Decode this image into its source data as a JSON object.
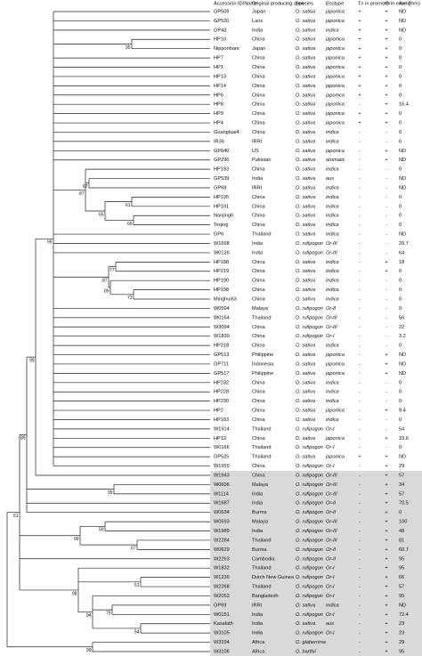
{
  "header": [
    "Accession ID/Name",
    "Original producing area",
    "Species",
    "Ecotype",
    "Tn in promoter",
    "G in exon 2",
    "Awn(mm)"
  ],
  "rows": [
    {
      "id": "GP509",
      "area": "Japan",
      "species": "O. sativa",
      "ecotype": "japonica",
      "tn": "+",
      "g": "+",
      "awn": "ND"
    },
    {
      "id": "GP520",
      "area": "Laos",
      "species": "O. sativa",
      "ecotype": "japonica",
      "tn": "+",
      "g": "+",
      "awn": "ND"
    },
    {
      "id": "GP43",
      "area": "India",
      "species": "O. sativa",
      "ecotype": "indica",
      "tn": "+",
      "g": "+",
      "awn": "ND"
    },
    {
      "id": "HP10",
      "area": "China",
      "species": "O. sativa",
      "ecotype": "japonica",
      "tn": "+",
      "g": "+",
      "awn": 0
    },
    {
      "id": "Nipponbare",
      "area": "Japan",
      "species": "O. sativa",
      "ecotype": "japonica",
      "tn": "+",
      "g": "+",
      "awn": 0
    },
    {
      "id": "HP7",
      "area": "China",
      "species": "O. sativa",
      "ecotype": "japonica",
      "tn": "+",
      "g": "+",
      "awn": 0
    },
    {
      "id": "HP1",
      "area": "China",
      "species": "O. sativa",
      "ecotype": "japonica",
      "tn": "+",
      "g": "+",
      "awn": 0
    },
    {
      "id": "HP13",
      "area": "China",
      "species": "O. sativa",
      "ecotype": "japonica",
      "tn": "+",
      "g": "+",
      "awn": 0
    },
    {
      "id": "HP14",
      "area": "China",
      "species": "O. sativa",
      "ecotype": "japonica",
      "tn": "+",
      "g": "+",
      "awn": 0
    },
    {
      "id": "HP6",
      "area": "China",
      "species": "O. sativa",
      "ecotype": "japonica",
      "tn": "+",
      "g": "+",
      "awn": 0
    },
    {
      "id": "HP8",
      "area": "China",
      "species": "O. sativa",
      "ecotype": "japonica",
      "tn": "-",
      "g": "+",
      "awn": 16.4
    },
    {
      "id": "HP9",
      "area": "China",
      "species": "O. sativa",
      "ecotype": "japonica",
      "tn": "+",
      "g": "+",
      "awn": 0
    },
    {
      "id": "HP4",
      "area": "China",
      "species": "O. sativa",
      "ecotype": "japonica",
      "tn": "+",
      "g": "+",
      "awn": 0
    },
    {
      "id": "Guangluai4",
      "area": "China",
      "species": "O. sativa",
      "ecotype": "indica",
      "tn": "-",
      "g": "-",
      "awn": 0
    },
    {
      "id": "IR36",
      "area": "IRRI",
      "species": "O. sativa",
      "ecotype": "indica",
      "tn": "-",
      "g": "-",
      "awn": 0
    },
    {
      "id": "GP640",
      "area": "US",
      "species": "O. sativa",
      "ecotype": "japonica",
      "tn": "-",
      "g": "+",
      "awn": "ND"
    },
    {
      "id": "GP296",
      "area": "Pakistan",
      "species": "O. sativa",
      "ecotype": "aromatic",
      "tn": "-",
      "g": "+",
      "awn": "ND"
    },
    {
      "id": "HP193",
      "area": "China",
      "species": "O. sativa",
      "ecotype": "indica",
      "tn": "-",
      "g": "-",
      "awn": 0
    },
    {
      "id": "GP539",
      "area": "India",
      "species": "O. sativa",
      "ecotype": "aus",
      "tn": "-",
      "g": "-",
      "awn": "ND"
    },
    {
      "id": "GP68",
      "area": "IRRI",
      "species": "O. sativa",
      "ecotype": "indica",
      "tn": "-",
      "g": "-",
      "awn": "ND"
    },
    {
      "id": "HP195",
      "area": "China",
      "species": "O. sativa",
      "ecotype": "indica",
      "tn": "-",
      "g": "-",
      "awn": 0
    },
    {
      "id": "HP191",
      "area": "China",
      "species": "O. sativa",
      "ecotype": "indica",
      "tn": "-",
      "g": "-",
      "awn": 0
    },
    {
      "id": "Nanjing6",
      "area": "China",
      "species": "O. sativa",
      "ecotype": "indica",
      "tn": "-",
      "g": "-",
      "awn": 0
    },
    {
      "id": "Teqing",
      "area": "China",
      "species": "O. sativa",
      "ecotype": "indica",
      "tn": "-",
      "g": "-",
      "awn": 0
    },
    {
      "id": "GP6",
      "area": "Thailand",
      "species": "O. sativa",
      "ecotype": "indica",
      "tn": "-",
      "g": "-",
      "awn": "ND"
    },
    {
      "id": "W1668",
      "area": "India",
      "species": "O. rufipogon",
      "ecotype": "Or-III",
      "tn": "-",
      "g": "-",
      "awn": 20.7
    },
    {
      "id": "W0126",
      "area": "India",
      "species": "O. rufipogon",
      "ecotype": "Or-III",
      "tn": "-",
      "g": "-",
      "awn": 64
    },
    {
      "id": "HP188",
      "area": "China",
      "species": "O. sativa",
      "ecotype": "indica",
      "tn": "-",
      "g": "+",
      "awn": 18
    },
    {
      "id": "HP219",
      "area": "China",
      "species": "O. sativa",
      "ecotype": "indica",
      "tn": "-",
      "g": "+",
      "awn": 0
    },
    {
      "id": "HP190",
      "area": "China",
      "species": "O. sativa",
      "ecotype": "indica",
      "tn": "-",
      "g": "-",
      "awn": 0
    },
    {
      "id": "HP198",
      "area": "China",
      "species": "O. sativa",
      "ecotype": "indica",
      "tn": "-",
      "g": "-",
      "awn": 0
    },
    {
      "id": "Minghui63",
      "area": "China",
      "species": "O. sativa",
      "ecotype": "indica",
      "tn": "-",
      "g": "-",
      "awn": 0
    },
    {
      "id": "W0594",
      "area": "Malaya",
      "species": "O. rufipogon",
      "ecotype": "Or-II",
      "tn": "-",
      "g": "-",
      "awn": 0
    },
    {
      "id": "W0164",
      "area": "Thailand",
      "species": "O. rufipogon",
      "ecotype": "Or-III",
      "tn": "-",
      "g": "-",
      "awn": 56
    },
    {
      "id": "W3094",
      "area": "China",
      "species": "O. rufipogon",
      "ecotype": "Or-III",
      "tn": "-",
      "g": "-",
      "awn": 22
    },
    {
      "id": "W1839",
      "area": "China",
      "species": "O. rufipogon",
      "ecotype": "Or-I",
      "tn": "-",
      "g": "-",
      "awn": 3.2
    },
    {
      "id": "HP218",
      "area": "China",
      "species": "O. sativa",
      "ecotype": "indica",
      "tn": "-",
      "g": "-",
      "awn": 0
    },
    {
      "id": "GP513",
      "area": "Philippine",
      "species": "O. sativa",
      "ecotype": "japonica",
      "tn": "-",
      "g": "+",
      "awn": "ND"
    },
    {
      "id": "GP711",
      "area": "Indonesia",
      "species": "O. sativa",
      "ecotype": "japonica",
      "tn": "-",
      "g": "+",
      "awn": "ND"
    },
    {
      "id": "GP517",
      "area": "Philippine",
      "species": "O. sativa",
      "ecotype": "japonica",
      "tn": "-",
      "g": "+",
      "awn": "ND"
    },
    {
      "id": "HP232",
      "area": "China",
      "species": "O. sativa",
      "ecotype": "indica",
      "tn": "-",
      "g": "-",
      "awn": 0
    },
    {
      "id": "HP228",
      "area": "China",
      "species": "O. sativa",
      "ecotype": "indica",
      "tn": "-",
      "g": "-",
      "awn": 0
    },
    {
      "id": "HP230",
      "area": "China",
      "species": "O. sativa",
      "ecotype": "indica",
      "tn": "-",
      "g": "-",
      "awn": 0
    },
    {
      "id": "HP2",
      "area": "China",
      "species": "O. sativa",
      "ecotype": "japonica",
      "tn": "-",
      "g": "+",
      "awn": 9.4
    },
    {
      "id": "HP183",
      "area": "China",
      "species": "O. sativa",
      "ecotype": "indica",
      "tn": "-",
      "g": "-",
      "awn": 0
    },
    {
      "id": "W1914",
      "area": "Thailand",
      "species": "O. rufipogon",
      "ecotype": "Or-I",
      "tn": "-",
      "g": "-",
      "awn": 54
    },
    {
      "id": "HP12",
      "area": "China",
      "species": "O. sativa",
      "ecotype": "japonica",
      "tn": "-",
      "g": "+",
      "awn": 33.6
    },
    {
      "id": "W0166",
      "area": "Thailand",
      "species": "O. rufipogon",
      "ecotype": "Or-I",
      "tn": "-",
      "g": "-",
      "awn": 0
    },
    {
      "id": "GP525",
      "area": "Thailand",
      "species": "O. sativa",
      "ecotype": "japonica",
      "tn": "+",
      "g": "+",
      "awn": "ND"
    },
    {
      "id": "W1959",
      "area": "China",
      "species": "O. rufipogon",
      "ecotype": "Or-I",
      "tn": "-",
      "g": "+",
      "awn": 29
    },
    {
      "id": "W1943",
      "area": "China",
      "species": "O. rufipogon",
      "ecotype": "Or-III",
      "tn": "-",
      "g": "+",
      "awn": 57
    },
    {
      "id": "W0606",
      "area": "Malaya",
      "species": "O. rufipogon",
      "ecotype": "Or-III",
      "tn": "-",
      "g": "+",
      "awn": 34
    },
    {
      "id": "W1114",
      "area": "India",
      "species": "O. rufipogon",
      "ecotype": "Or-III",
      "tn": "-",
      "g": "+",
      "awn": 57
    },
    {
      "id": "W1687",
      "area": "India",
      "species": "O. rufipogon",
      "ecotype": "Or-II",
      "tn": "-",
      "g": "+",
      "awn": 70.5
    },
    {
      "id": "W0634",
      "area": "Burma",
      "species": "O. rufipogon",
      "ecotype": "Or-II",
      "tn": "-",
      "g": "+",
      "awn": 0
    },
    {
      "id": "W0593",
      "area": "Malaya",
      "species": "O. rufipogon",
      "ecotype": "Or-III",
      "tn": "-",
      "g": "+",
      "awn": 100
    },
    {
      "id": "W1989",
      "area": "India",
      "species": "O. rufipogon",
      "ecotype": "Or-III",
      "tn": "-",
      "g": "+",
      "awn": 48
    },
    {
      "id": "W2284",
      "area": "Thailand",
      "species": "O. rufipogon",
      "ecotype": "Or-III",
      "tn": "-",
      "g": "+",
      "awn": 81
    },
    {
      "id": "W0629",
      "area": "Burma",
      "species": "O. rufipogon",
      "ecotype": "Or-II",
      "tn": "-",
      "g": "+",
      "awn": 60.7
    },
    {
      "id": "W2263",
      "area": "Cambodia",
      "species": "O. rufipogon",
      "ecotype": "Or-II",
      "tn": "-",
      "g": "+",
      "awn": 95
    },
    {
      "id": "W1832",
      "area": "Thailand",
      "species": "O. rufipogon",
      "ecotype": "Or-I",
      "tn": "-",
      "g": "+",
      "awn": 95
    },
    {
      "id": "W1230",
      "area": "Dutch New Guinea",
      "species": "O. rufipogon",
      "ecotype": "Or-I",
      "tn": "-",
      "g": "+",
      "awn": 66
    },
    {
      "id": "W2268",
      "area": "Thailand",
      "species": "O. rufipogon",
      "ecotype": "Or-I",
      "tn": "-",
      "g": "+",
      "awn": 57
    },
    {
      "id": "W2053",
      "area": "Bangladesh",
      "species": "O. rufipogon",
      "ecotype": "Or-I",
      "tn": "-",
      "g": "+",
      "awn": 95
    },
    {
      "id": "GP69",
      "area": "IRRI",
      "species": "O. sativa",
      "ecotype": "indica",
      "tn": "-",
      "g": "+",
      "awn": "ND"
    },
    {
      "id": "W0151",
      "area": "India",
      "species": "O. rufipogon",
      "ecotype": "Or-I",
      "tn": "-",
      "g": "+",
      "awn": 72.4
    },
    {
      "id": "Kasalath",
      "area": "India",
      "species": "O. sativa",
      "ecotype": "aus",
      "tn": "-",
      "g": "+",
      "awn": 23
    },
    {
      "id": "W3105",
      "area": "India",
      "species": "O. rufipogon",
      "ecotype": "Or-I",
      "tn": "-",
      "g": "+",
      "awn": 23
    },
    {
      "id": "W3104",
      "area": "Africa",
      "species": "O. glaberrima",
      "tn": "-",
      "g": "+",
      "awn": 29
    },
    {
      "id": "W3106",
      "area": "Africa",
      "species": "O. barthii",
      "tn": "-",
      "g": "+",
      "awn": 95
    }
  ],
  "bootstrap": [
    95,
    87,
    67,
    65,
    61,
    66,
    99,
    77,
    87,
    89,
    73,
    89,
    99,
    61,
    99,
    59,
    99,
    67,
    51,
    98,
    94,
    79,
    54,
    99
  ]
}
